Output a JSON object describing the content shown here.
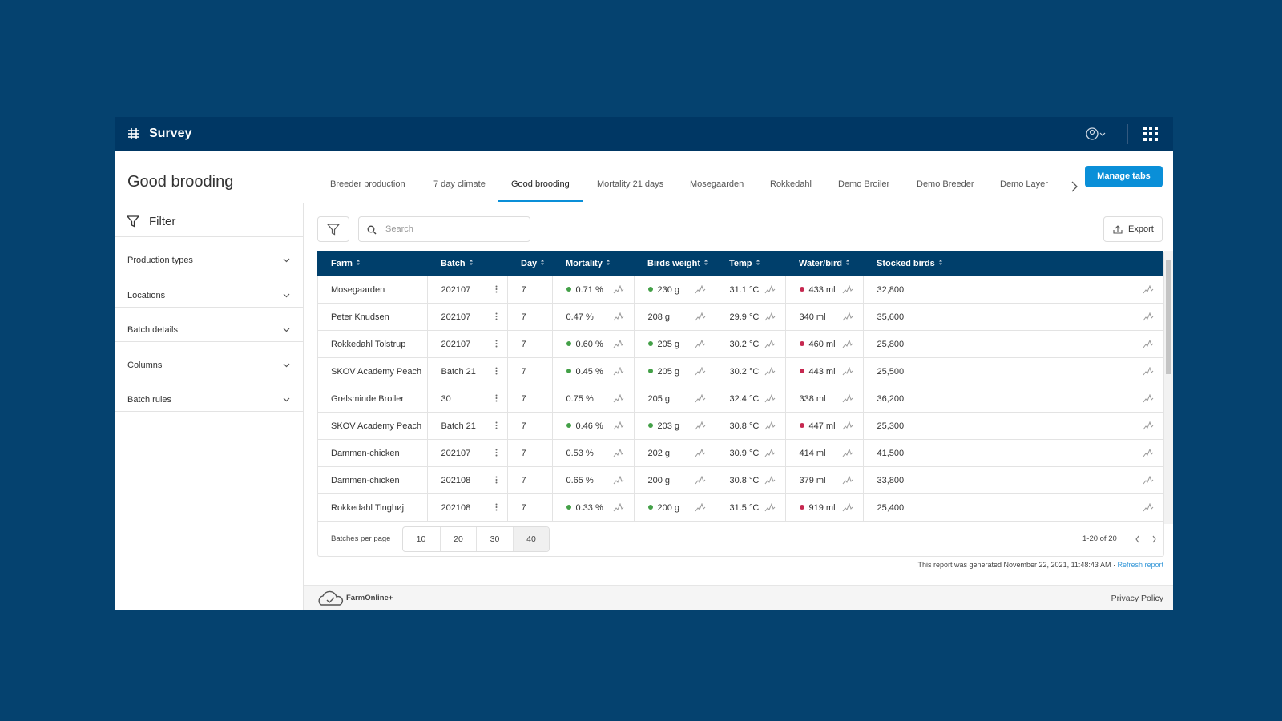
{
  "app": {
    "title": "Survey"
  },
  "page": {
    "title": "Good brooding",
    "tabs": [
      "Breeder production",
      "7 day climate",
      "Good brooding",
      "Mortality 21 days",
      "Mosegaarden",
      "Rokkedahl",
      "Demo Broiler",
      "Demo Breeder",
      "Demo Layer"
    ],
    "active_tab": 2,
    "manage_button": "Manage tabs"
  },
  "filter": {
    "title": "Filter",
    "sections": [
      "Production types",
      "Locations",
      "Batch details",
      "Columns",
      "Batch rules"
    ]
  },
  "toolbar": {
    "search_placeholder": "Search",
    "export": "Export"
  },
  "table": {
    "columns": [
      "Farm",
      "Batch",
      "Day",
      "Mortality",
      "Birds weight",
      "Temp",
      "Water/bird",
      "Stocked birds"
    ],
    "rows": [
      [
        "Mosegaarden",
        "202107",
        "7",
        "0.71 %",
        "230 g",
        "31.1 °C",
        "433 ml",
        "32,800"
      ],
      [
        "Peter Knudsen",
        "202107",
        "7",
        "0.47 %",
        "208 g",
        "29.9 °C",
        "340 ml",
        "35,600"
      ],
      [
        "Rokkedahl Tolstrup",
        "202107",
        "7",
        "0.60 %",
        "205 g",
        "30.2 °C",
        "460 ml",
        "25,800"
      ],
      [
        "SKOV Academy Peach",
        "Batch 21",
        "7",
        "0.45 %",
        "205 g",
        "30.2 °C",
        "443 ml",
        "25,500"
      ],
      [
        "Grelsminde Broiler",
        "30",
        "7",
        "0.75 %",
        "205 g",
        "32.4 °C",
        "338 ml",
        "36,200"
      ],
      [
        "SKOV Academy Peach",
        "Batch 21",
        "7",
        "0.46 %",
        "203 g",
        "30.8 °C",
        "447 ml",
        "25,300"
      ],
      [
        "Dammen-chicken",
        "202107",
        "7",
        "0.53 %",
        "202 g",
        "30.9 °C",
        "414 ml",
        "41,500"
      ],
      [
        "Dammen-chicken",
        "202108",
        "7",
        "0.65 %",
        "200 g",
        "30.8 °C",
        "379 ml",
        "33,800"
      ],
      [
        "Rokkedahl Tinghøj",
        "202108",
        "7",
        "0.33 %",
        "200 g",
        "31.5 °C",
        "919 ml",
        "25,400"
      ]
    ],
    "dots": [
      [
        null,
        null,
        null,
        "#43a047",
        "#43a047",
        null,
        "#c62850",
        null
      ],
      [
        null,
        null,
        null,
        null,
        null,
        null,
        null,
        null
      ],
      [
        null,
        null,
        null,
        "#43a047",
        "#43a047",
        null,
        "#c62850",
        null
      ],
      [
        null,
        null,
        null,
        "#43a047",
        "#43a047",
        null,
        "#c62850",
        null
      ],
      [
        null,
        null,
        null,
        null,
        null,
        null,
        null,
        null
      ],
      [
        null,
        null,
        null,
        "#43a047",
        "#43a047",
        null,
        "#c62850",
        null
      ],
      [
        null,
        null,
        null,
        null,
        null,
        null,
        null,
        null
      ],
      [
        null,
        null,
        null,
        null,
        null,
        null,
        null,
        null
      ],
      [
        null,
        null,
        null,
        "#43a047",
        "#43a047",
        null,
        "#c62850",
        null
      ]
    ]
  },
  "pagination": {
    "label": "Batches per page",
    "options": [
      "10",
      "20",
      "30",
      "40"
    ],
    "selected": 3,
    "range": "1-20 of 20"
  },
  "report": {
    "text": "This report was generated November 22, 2021, 11:48:43 AM ·",
    "link": "Refresh report"
  },
  "footer": {
    "brand": "FarmOnline+",
    "privacy": "Privacy Policy"
  }
}
